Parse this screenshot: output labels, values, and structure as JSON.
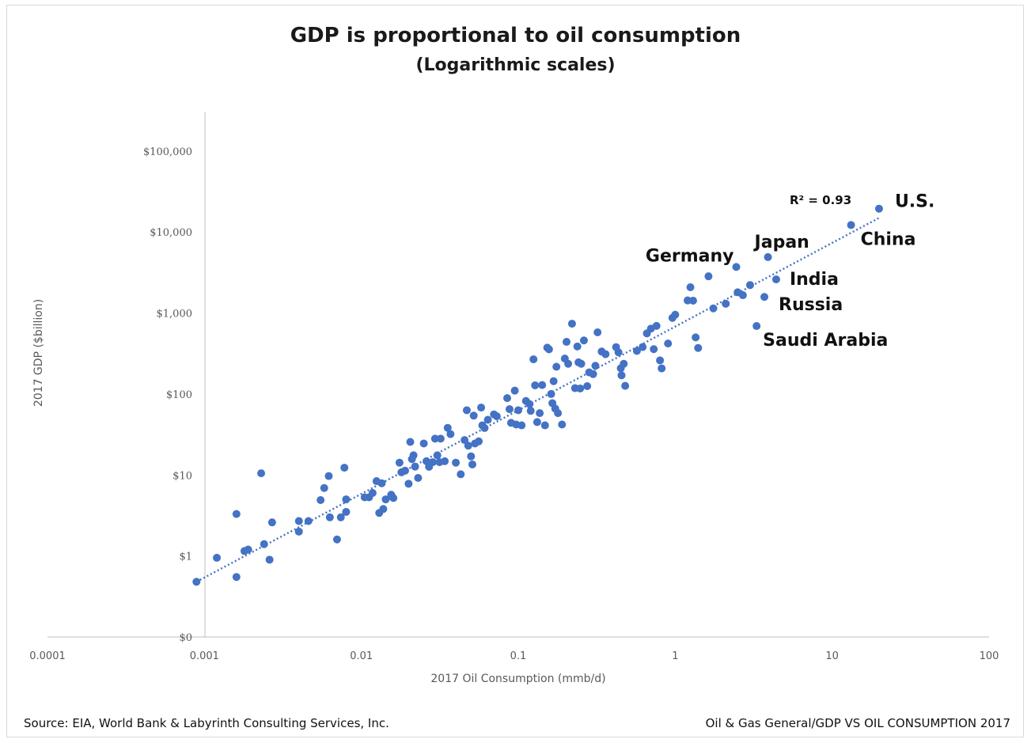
{
  "header": {
    "title": "GDP is proportional to oil consumption",
    "subtitle": "(Logarithmic scales)"
  },
  "footer": {
    "source": "Source: EIA, World Bank & Labyrinth Consulting Services, Inc.",
    "tag": "Oil & Gas General/GDP VS OIL CONSUMPTION 2017"
  },
  "colors": {
    "points": "#4472c4",
    "trend": "#4472c4",
    "axis": "#bfbfbf"
  },
  "chart_data": {
    "type": "scatter",
    "title": "GDP is proportional to oil consumption",
    "subtitle": "(Logarithmic scales)",
    "xlabel": "2017 Oil Consumption (mmb/d)",
    "ylabel": "2017 GDP ($billion)",
    "x_scale": "log",
    "y_scale": "log",
    "xlim": [
      0.0001,
      100
    ],
    "ylim": [
      0.1,
      300000
    ],
    "x_ticks": [
      {
        "value": 0.0001,
        "label": "0.0001"
      },
      {
        "value": 0.001,
        "label": "0.001"
      },
      {
        "value": 0.01,
        "label": "0.01"
      },
      {
        "value": 0.1,
        "label": "0.1"
      },
      {
        "value": 1,
        "label": "1"
      },
      {
        "value": 10,
        "label": "10"
      },
      {
        "value": 100,
        "label": "100"
      }
    ],
    "y_ticks": [
      {
        "value": 0.1,
        "label": "$0"
      },
      {
        "value": 1,
        "label": "$1"
      },
      {
        "value": 10,
        "label": "$10"
      },
      {
        "value": 100,
        "label": "$100"
      },
      {
        "value": 1000,
        "label": "$1,000"
      },
      {
        "value": 10000,
        "label": "$10,000"
      },
      {
        "value": 100000,
        "label": "$100,000"
      }
    ],
    "grid": false,
    "legend": "none",
    "trendline": {
      "type": "power",
      "r2_label": "R² = 0.93",
      "start": {
        "x": 0.00089,
        "y": 0.48
      },
      "end": {
        "x": 20,
        "y": 15000
      }
    },
    "labeled_points": [
      {
        "label": "U.S.",
        "x": 19.9,
        "y": 19400
      },
      {
        "label": "China",
        "x": 13.2,
        "y": 12200
      },
      {
        "label": "Japan",
        "x": 3.9,
        "y": 4900
      },
      {
        "label": "Germany",
        "x": 2.45,
        "y": 3700
      },
      {
        "label": "India",
        "x": 4.4,
        "y": 2600
      },
      {
        "label": "Russia",
        "x": 3.7,
        "y": 1580
      },
      {
        "label": "Saudi Arabia",
        "x": 3.3,
        "y": 690
      }
    ],
    "points": [
      [
        0.00089,
        0.48
      ],
      [
        0.0012,
        0.95
      ],
      [
        0.0016,
        0.55
      ],
      [
        0.0016,
        3.3
      ],
      [
        0.0018,
        1.15
      ],
      [
        0.0019,
        1.2
      ],
      [
        0.0023,
        10.5
      ],
      [
        0.0024,
        1.4
      ],
      [
        0.0026,
        0.9
      ],
      [
        0.0027,
        2.6
      ],
      [
        0.004,
        2.0
      ],
      [
        0.004,
        2.7
      ],
      [
        0.0046,
        2.7
      ],
      [
        0.0055,
        4.9
      ],
      [
        0.0058,
        6.9
      ],
      [
        0.0062,
        9.7
      ],
      [
        0.0063,
        3.0
      ],
      [
        0.007,
        1.6
      ],
      [
        0.0074,
        3.0
      ],
      [
        0.0078,
        12.3
      ],
      [
        0.008,
        5.0
      ],
      [
        0.008,
        3.5
      ],
      [
        0.0105,
        5.3
      ],
      [
        0.0112,
        5.3
      ],
      [
        0.0118,
        6.0
      ],
      [
        0.0125,
        8.4
      ],
      [
        0.013,
        3.4
      ],
      [
        0.0135,
        7.9
      ],
      [
        0.0138,
        3.8
      ],
      [
        0.0143,
        5.0
      ],
      [
        0.0155,
        5.7
      ],
      [
        0.016,
        5.2
      ],
      [
        0.0175,
        14.2
      ],
      [
        0.018,
        10.8
      ],
      [
        0.019,
        11.3
      ],
      [
        0.02,
        7.8
      ],
      [
        0.0205,
        25.6
      ],
      [
        0.021,
        15.7
      ],
      [
        0.0215,
        17.5
      ],
      [
        0.022,
        12.7
      ],
      [
        0.023,
        9.2
      ],
      [
        0.025,
        24.5
      ],
      [
        0.026,
        14.8
      ],
      [
        0.027,
        12.6
      ],
      [
        0.0285,
        14.4
      ],
      [
        0.0295,
        28.1
      ],
      [
        0.0305,
        17.5
      ],
      [
        0.0315,
        14.4
      ],
      [
        0.032,
        28.1
      ],
      [
        0.034,
        14.8
      ],
      [
        0.0355,
        38.2
      ],
      [
        0.037,
        32.0
      ],
      [
        0.04,
        14.2
      ],
      [
        0.043,
        10.2
      ],
      [
        0.0455,
        27.0
      ],
      [
        0.047,
        63.0
      ],
      [
        0.048,
        23.0
      ],
      [
        0.05,
        17.0
      ],
      [
        0.051,
        13.5
      ],
      [
        0.052,
        54.0
      ],
      [
        0.053,
        24.5
      ],
      [
        0.056,
        26.0
      ],
      [
        0.058,
        68.0
      ],
      [
        0.059,
        41.0
      ],
      [
        0.061,
        38.0
      ],
      [
        0.064,
        48.0
      ],
      [
        0.07,
        56.0
      ],
      [
        0.073,
        53.0
      ],
      [
        0.085,
        89.0
      ],
      [
        0.088,
        65.0
      ],
      [
        0.09,
        44.0
      ],
      [
        0.095,
        110.0
      ],
      [
        0.097,
        42.0
      ],
      [
        0.1,
        63.0
      ],
      [
        0.105,
        41.0
      ],
      [
        0.112,
        82.0
      ],
      [
        0.118,
        75.0
      ],
      [
        0.12,
        62.0
      ],
      [
        0.125,
        268.0
      ],
      [
        0.128,
        128.0
      ],
      [
        0.132,
        45.0
      ],
      [
        0.137,
        58.0
      ],
      [
        0.142,
        129.0
      ],
      [
        0.148,
        41.0
      ],
      [
        0.153,
        373.0
      ],
      [
        0.157,
        356.0
      ],
      [
        0.162,
        100.0
      ],
      [
        0.165,
        77.0
      ],
      [
        0.168,
        144.0
      ],
      [
        0.172,
        66.0
      ],
      [
        0.175,
        217.0
      ],
      [
        0.179,
        58.0
      ],
      [
        0.19,
        42.0
      ],
      [
        0.198,
        274.0
      ],
      [
        0.203,
        440.0
      ],
      [
        0.208,
        236.0
      ],
      [
        0.22,
        738.0
      ],
      [
        0.23,
        118.0
      ],
      [
        0.238,
        386.0
      ],
      [
        0.242,
        246.0
      ],
      [
        0.248,
        117.0
      ],
      [
        0.252,
        236.0
      ],
      [
        0.262,
        458.0
      ],
      [
        0.275,
        125.0
      ],
      [
        0.283,
        185.0
      ],
      [
        0.3,
        176.0
      ],
      [
        0.31,
        223.0
      ],
      [
        0.32,
        577.0
      ],
      [
        0.34,
        334.0
      ],
      [
        0.36,
        310.0
      ],
      [
        0.42,
        379.0
      ],
      [
        0.435,
        327.0
      ],
      [
        0.45,
        208.0
      ],
      [
        0.455,
        170.0
      ],
      [
        0.47,
        236.0
      ],
      [
        0.48,
        126.0
      ],
      [
        0.57,
        340.0
      ],
      [
        0.62,
        380.0
      ],
      [
        0.66,
        560.0
      ],
      [
        0.7,
        640.0
      ],
      [
        0.73,
        358.0
      ],
      [
        0.76,
        693.0
      ],
      [
        0.8,
        260.0
      ],
      [
        0.82,
        207.0
      ],
      [
        0.9,
        420.0
      ],
      [
        0.96,
        870.0
      ],
      [
        1.0,
        952.0
      ],
      [
        1.2,
        1430.0
      ],
      [
        1.25,
        2080.0
      ],
      [
        1.3,
        1420.0
      ],
      [
        1.35,
        500.0
      ],
      [
        1.4,
        370.0
      ],
      [
        1.63,
        2840.0
      ],
      [
        1.75,
        1140.0
      ],
      [
        2.1,
        1300.0
      ],
      [
        2.5,
        1800.0
      ],
      [
        2.7,
        1660.0
      ],
      [
        3.0,
        2210.0
      ]
    ]
  }
}
